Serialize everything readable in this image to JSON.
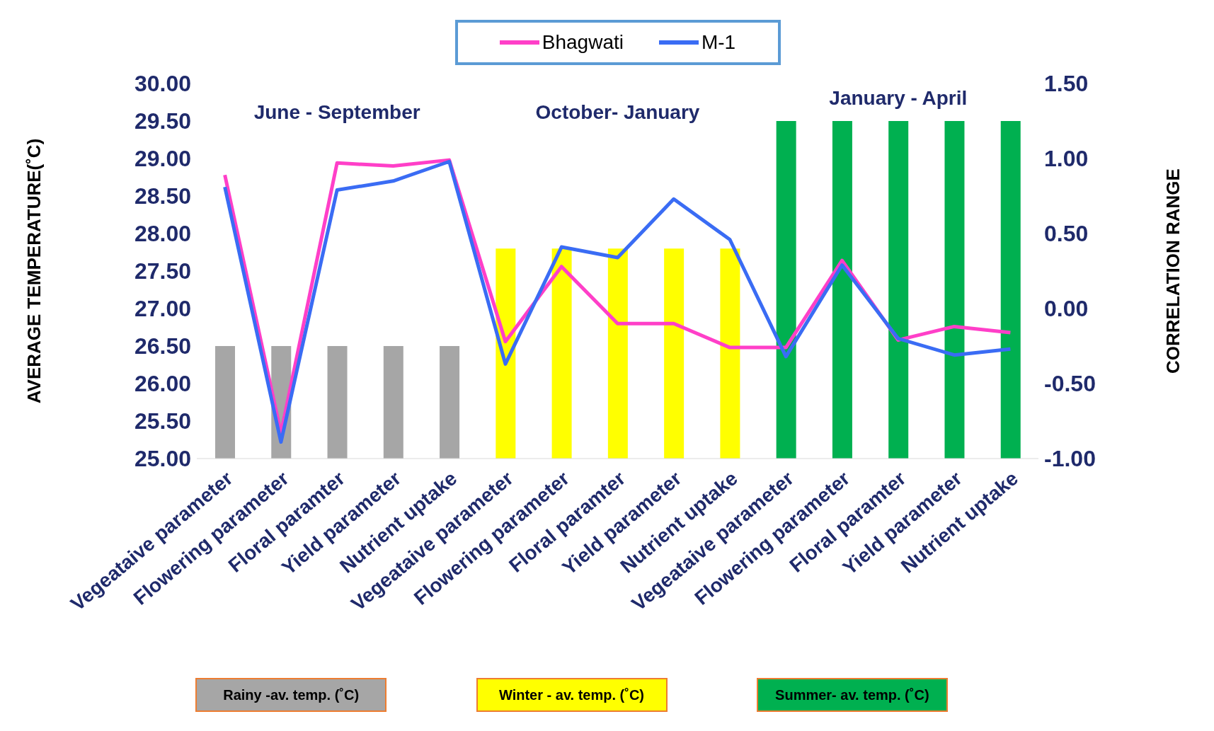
{
  "chart_data": {
    "type": "bar",
    "stacked": true,
    "categories": [
      "Vegeataive parameter",
      "Flowering parameter",
      "Floral paramter",
      "Yield parameter",
      "Nutrient uptake",
      "Vegeataive parameter",
      "Flowering parameter",
      "Floral paramter",
      "Yield parameter",
      "Nutrient uptake",
      "Vegeataive parameter",
      "Flowering parameter",
      "Floral paramter",
      "Yield parameter",
      "Nutrient uptake"
    ],
    "series": [
      {
        "name": "Rainy -av. temp. (˚C)",
        "color": "#a6a6a6",
        "values": [
          26.5,
          26.5,
          26.5,
          26.5,
          26.5,
          null,
          null,
          null,
          null,
          null,
          null,
          null,
          null,
          null,
          null
        ]
      },
      {
        "name": "Winter - av. temp. (˚C)",
        "color": "#ffff00",
        "values": [
          null,
          null,
          null,
          null,
          null,
          27.8,
          27.8,
          27.8,
          27.8,
          27.8,
          null,
          null,
          null,
          null,
          null
        ]
      },
      {
        "name": "Summer- av. temp. (˚C)",
        "color": "#00b050",
        "values": [
          null,
          null,
          null,
          null,
          null,
          null,
          null,
          null,
          null,
          null,
          29.5,
          29.5,
          29.5,
          29.5,
          29.5
        ]
      },
      {
        "name": "Bhagwati",
        "type": "line",
        "axis": "y2",
        "color": "#ff3fc8",
        "values": [
          0.89,
          -0.83,
          0.97,
          0.95,
          0.99,
          -0.22,
          0.28,
          -0.1,
          -0.1,
          -0.26,
          -0.26,
          0.32,
          -0.21,
          -0.12,
          -0.16
        ]
      },
      {
        "name": "M-1",
        "type": "line",
        "axis": "y2",
        "color": "#3a6cf4",
        "values": [
          0.81,
          -0.89,
          0.79,
          0.85,
          0.98,
          -0.37,
          0.41,
          0.34,
          0.73,
          0.46,
          -0.32,
          0.29,
          -0.2,
          -0.31,
          -0.27
        ]
      }
    ],
    "ylabel": "AVERAGE TEMPERATURE(˚C)",
    "y2label": "CORRELATION RANGE",
    "ylim": [
      25,
      30
    ],
    "yticks": [
      {
        "value": 25,
        "label": "25.00"
      },
      {
        "value": 25.5,
        "label": "25.50"
      },
      {
        "value": 26,
        "label": "26.00"
      },
      {
        "value": 26.5,
        "label": "26.50"
      },
      {
        "value": 27,
        "label": "27.00"
      },
      {
        "value": 27.5,
        "label": "27.50"
      },
      {
        "value": 28,
        "label": "28.00"
      },
      {
        "value": 28.5,
        "label": "28.50"
      },
      {
        "value": 29,
        "label": "29.00"
      },
      {
        "value": 29.5,
        "label": "29.50"
      },
      {
        "value": 30,
        "label": "30.00"
      }
    ],
    "y2lim": [
      -1,
      1.5
    ],
    "y2ticks": [
      {
        "value": -1,
        "label": "-1.00"
      },
      {
        "value": -0.5,
        "label": "-0.50"
      },
      {
        "value": 0,
        "label": "0.00"
      },
      {
        "value": 0.5,
        "label": "0.50"
      },
      {
        "value": 1,
        "label": "1.00"
      },
      {
        "value": 1.5,
        "label": "1.50"
      }
    ],
    "annotations": [
      "June - September",
      "October- January",
      "January - April"
    ],
    "legend": "top",
    "marker": "none",
    "line_style": "solid"
  }
}
